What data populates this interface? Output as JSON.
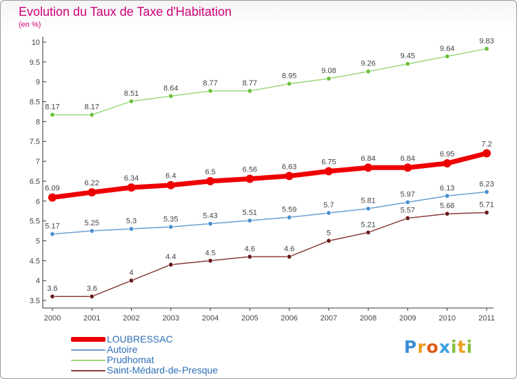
{
  "header": {
    "title": "Evolution du Taux de Taxe d'Habitation",
    "subtitle": "(en %)"
  },
  "logo": {
    "text": [
      "P",
      "r",
      "o",
      "x",
      "i",
      "t",
      "i"
    ],
    "colors": [
      "#3a8fd6",
      "#e8a020",
      "#e05a1a",
      "#3aa0e0",
      "#88c040",
      "#e8a020",
      "#88c040"
    ]
  },
  "chart_data": {
    "type": "line",
    "title": "Evolution du Taux de Taxe d'Habitation",
    "ylabel": "(en %)",
    "x": [
      "2000",
      "2001",
      "2002",
      "2003",
      "2004",
      "2005",
      "2006",
      "2007",
      "2008",
      "2009",
      "2010",
      "2011"
    ],
    "ylim": [
      3.5,
      10
    ],
    "yticks": [
      "3.5",
      "4",
      "4.5",
      "5",
      "5.5",
      "6",
      "6.5",
      "7",
      "7.5",
      "8",
      "8.5",
      "9",
      "9.5",
      "10"
    ],
    "grid": false,
    "legend_position": "bottom-left",
    "series": [
      {
        "name": "LOUBRESSAC",
        "color": "#ee0000",
        "marker_color": "#ee0000",
        "emphasis": true,
        "values": [
          6.09,
          6.22,
          6.34,
          6.4,
          6.5,
          6.56,
          6.63,
          6.75,
          6.84,
          6.84,
          6.95,
          7.2
        ],
        "labels": [
          "6.09",
          "6.22",
          "6.34",
          "6.4",
          "6.5",
          "6.56",
          "6.63",
          "6.75",
          "6.84",
          "6.84",
          "6.95",
          "7.2"
        ]
      },
      {
        "name": "Autoire",
        "color": "#6a9fd4",
        "marker_color": "#4a8fd0",
        "emphasis": false,
        "values": [
          5.17,
          5.25,
          5.3,
          5.35,
          5.43,
          5.51,
          5.59,
          5.7,
          5.81,
          5.97,
          6.13,
          6.23
        ],
        "labels": [
          "5.17",
          "5.25",
          "5.3",
          "5.35",
          "5.43",
          "5.51",
          "5.59",
          "5.7",
          "5.81",
          "5.97",
          "6.13",
          "6.23"
        ]
      },
      {
        "name": "Prudhomat",
        "color": "#9ad87a",
        "marker_color": "#6cc03a",
        "emphasis": false,
        "values": [
          8.17,
          8.17,
          8.51,
          8.64,
          8.77,
          8.77,
          8.95,
          9.08,
          9.26,
          9.45,
          9.64,
          9.83
        ],
        "labels": [
          "8.17",
          "8.17",
          "8.51",
          "8.64",
          "8.77",
          "8.77",
          "8.95",
          "9.08",
          "9.26",
          "9.45",
          "9.64",
          "9.83"
        ]
      },
      {
        "name": "Saint-Médard-de-Presque",
        "color": "#8a3a3a",
        "marker_color": "#6a1a1a",
        "emphasis": false,
        "values": [
          3.6,
          3.6,
          4,
          4.4,
          4.5,
          4.6,
          4.6,
          5,
          5.21,
          5.57,
          5.68,
          5.71
        ],
        "labels": [
          "3.6",
          "3.6",
          "4",
          "4.4",
          "4.5",
          "4.6",
          "4.6",
          "5",
          "5.21",
          "5.57",
          "5.68",
          "5.71"
        ]
      }
    ]
  }
}
